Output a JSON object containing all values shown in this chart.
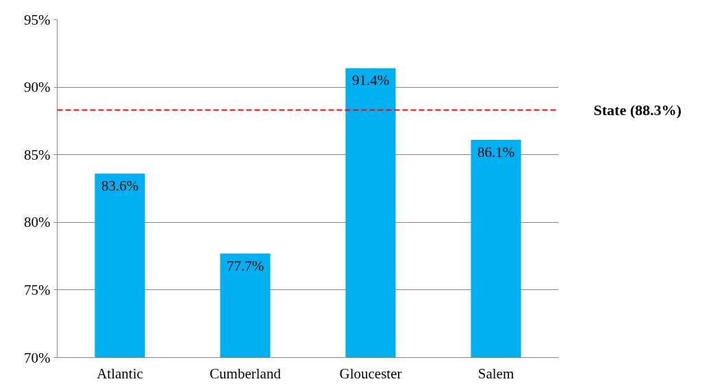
{
  "chart_data": {
    "type": "bar",
    "categories": [
      "Atlantic",
      "Cumberland",
      "Gloucester",
      "Salem"
    ],
    "values": [
      83.6,
      77.7,
      91.4,
      86.1
    ],
    "value_labels": [
      "83.6%",
      "77.7%",
      "91.4%",
      "86.1%"
    ],
    "color": "#00b0f0",
    "ylim": [
      70,
      95
    ],
    "yticks": [
      {
        "value": 70,
        "label": "70%"
      },
      {
        "value": 75,
        "label": "75%"
      },
      {
        "value": 80,
        "label": "80%"
      },
      {
        "value": 85,
        "label": "85%"
      },
      {
        "value": 90,
        "label": "90%"
      },
      {
        "value": 95,
        "label": "95%"
      }
    ],
    "ref_lines": [
      {
        "axis": "y",
        "value": 88.3,
        "label": "State (88.3%)",
        "color": "#ff0000",
        "line_style": "dashed"
      }
    ],
    "grid": "y"
  }
}
